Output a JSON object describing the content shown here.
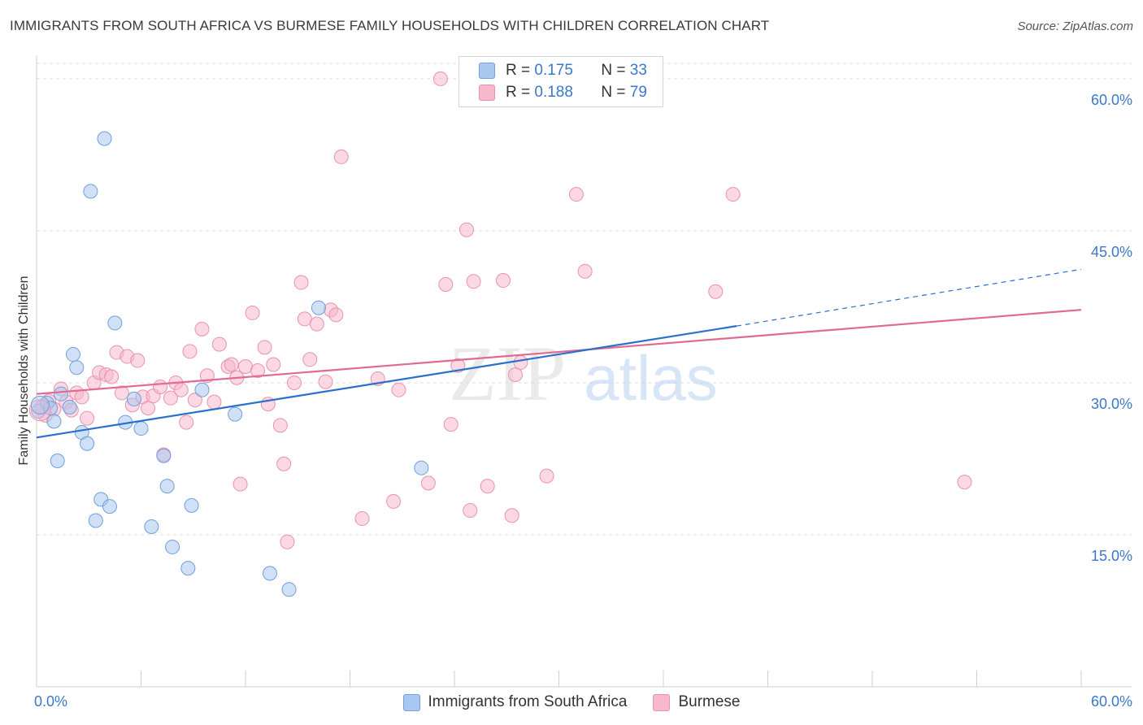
{
  "header": {
    "title": "IMMIGRANTS FROM SOUTH AFRICA VS BURMESE FAMILY HOUSEHOLDS WITH CHILDREN CORRELATION CHART",
    "source": "Source: ZipAtlas.com"
  },
  "watermark": {
    "part1": "ZIP",
    "part2": "atlas"
  },
  "legend": {
    "series1": {
      "r_label": "R =",
      "r_value": "0.175",
      "n_label": "N =",
      "n_value": "33"
    },
    "series2": {
      "r_label": "R =",
      "r_value": "0.188",
      "n_label": "N =",
      "n_value": "79"
    }
  },
  "colors": {
    "series1_fill": "#a9c8f0",
    "series1_stroke": "#6f9fdc",
    "series1_line": "#2b6fcc",
    "series2_fill": "#f7b8cc",
    "series2_stroke": "#e893ae",
    "series2_line": "#e06a95",
    "tick_label": "#3a78c9",
    "grid": "#dddddd"
  },
  "chart_data": {
    "type": "scatter",
    "title": "IMMIGRANTS FROM SOUTH AFRICA VS BURMESE FAMILY HOUSEHOLDS WITH CHILDREN CORRELATION CHART",
    "xlabel": "",
    "ylabel": "Family Households with Children",
    "xlim": [
      0,
      60
    ],
    "ylim": [
      0,
      62
    ],
    "x_tick_labels": [
      "0.0%",
      "60.0%"
    ],
    "y_ticks": [
      15,
      30,
      45,
      60
    ],
    "y_tick_labels": [
      "15.0%",
      "30.0%",
      "45.0%",
      "60.0%"
    ],
    "grid": "horizontal dashed",
    "legend_position": "bottom",
    "series": [
      {
        "name": "Immigrants from South Africa",
        "points": [
          [
            0.1,
            27.2
          ],
          [
            0.6,
            28.0
          ],
          [
            0.8,
            27.5
          ],
          [
            1.0,
            26.2
          ],
          [
            1.2,
            22.3
          ],
          [
            1.4,
            28.9
          ],
          [
            1.9,
            27.6
          ],
          [
            2.1,
            32.8
          ],
          [
            2.3,
            31.5
          ],
          [
            2.6,
            25.1
          ],
          [
            2.9,
            24.0
          ],
          [
            3.1,
            48.9
          ],
          [
            3.4,
            16.4
          ],
          [
            3.7,
            18.5
          ],
          [
            3.9,
            54.1
          ],
          [
            4.2,
            17.8
          ],
          [
            4.5,
            35.9
          ],
          [
            5.1,
            26.1
          ],
          [
            5.6,
            28.4
          ],
          [
            6.0,
            25.5
          ],
          [
            6.6,
            15.8
          ],
          [
            7.3,
            22.8
          ],
          [
            7.5,
            19.8
          ],
          [
            7.8,
            13.8
          ],
          [
            8.7,
            11.7
          ],
          [
            8.9,
            17.9
          ],
          [
            9.5,
            29.3
          ],
          [
            11.4,
            26.9
          ],
          [
            13.4,
            11.2
          ],
          [
            14.5,
            9.6
          ],
          [
            16.2,
            37.4
          ],
          [
            22.1,
            21.6
          ],
          [
            33.5,
            58.0
          ]
        ],
        "trend_solid": {
          "x": [
            0,
            40.2
          ],
          "y": [
            24.6,
            35.6
          ]
        },
        "trend_dashed": {
          "x": [
            40.2,
            60
          ],
          "y": [
            35.6,
            41.2
          ]
        }
      },
      {
        "name": "Burmese",
        "points": [
          [
            0.3,
            27.6
          ],
          [
            0.5,
            26.8
          ],
          [
            0.7,
            28.2
          ],
          [
            1.0,
            27.4
          ],
          [
            1.4,
            29.4
          ],
          [
            1.7,
            28.1
          ],
          [
            2.0,
            27.3
          ],
          [
            2.3,
            29.0
          ],
          [
            2.6,
            28.6
          ],
          [
            2.9,
            26.5
          ],
          [
            3.3,
            30.0
          ],
          [
            3.6,
            31.0
          ],
          [
            4.0,
            30.8
          ],
          [
            4.3,
            30.6
          ],
          [
            4.6,
            33.0
          ],
          [
            4.9,
            29.0
          ],
          [
            5.2,
            32.6
          ],
          [
            5.5,
            27.8
          ],
          [
            5.8,
            32.2
          ],
          [
            6.1,
            28.6
          ],
          [
            6.4,
            27.5
          ],
          [
            6.7,
            28.7
          ],
          [
            7.1,
            29.6
          ],
          [
            7.3,
            22.9
          ],
          [
            7.7,
            28.5
          ],
          [
            8.0,
            30.0
          ],
          [
            8.3,
            29.3
          ],
          [
            8.6,
            26.1
          ],
          [
            8.8,
            33.1
          ],
          [
            9.1,
            28.3
          ],
          [
            9.5,
            35.3
          ],
          [
            9.8,
            30.7
          ],
          [
            10.2,
            28.1
          ],
          [
            10.5,
            33.8
          ],
          [
            11.0,
            31.6
          ],
          [
            11.2,
            31.8
          ],
          [
            11.5,
            30.5
          ],
          [
            11.7,
            20.0
          ],
          [
            12.0,
            31.6
          ],
          [
            12.4,
            36.9
          ],
          [
            12.7,
            31.2
          ],
          [
            13.1,
            33.5
          ],
          [
            13.3,
            27.9
          ],
          [
            13.6,
            31.8
          ],
          [
            14.0,
            25.8
          ],
          [
            14.2,
            22.0
          ],
          [
            14.4,
            14.3
          ],
          [
            14.8,
            30.0
          ],
          [
            15.2,
            39.9
          ],
          [
            15.4,
            36.3
          ],
          [
            15.7,
            32.3
          ],
          [
            16.1,
            35.8
          ],
          [
            16.6,
            30.1
          ],
          [
            16.9,
            37.2
          ],
          [
            17.2,
            36.7
          ],
          [
            17.5,
            52.3
          ],
          [
            18.7,
            16.6
          ],
          [
            19.6,
            30.4
          ],
          [
            20.5,
            18.3
          ],
          [
            20.8,
            29.3
          ],
          [
            22.5,
            20.1
          ],
          [
            23.2,
            60.0
          ],
          [
            23.5,
            39.7
          ],
          [
            23.8,
            25.9
          ],
          [
            24.2,
            31.7
          ],
          [
            24.7,
            45.1
          ],
          [
            24.9,
            17.4
          ],
          [
            25.1,
            40.0
          ],
          [
            25.9,
            19.8
          ],
          [
            26.8,
            40.1
          ],
          [
            27.3,
            16.9
          ],
          [
            27.5,
            30.8
          ],
          [
            27.8,
            32.0
          ],
          [
            29.3,
            20.8
          ],
          [
            31.0,
            48.6
          ],
          [
            31.5,
            41.0
          ],
          [
            39.0,
            39.0
          ],
          [
            40.0,
            48.6
          ],
          [
            53.3,
            20.2
          ]
        ],
        "trend_solid": {
          "x": [
            0,
            60
          ],
          "y": [
            28.9,
            37.2
          ]
        }
      }
    ]
  }
}
